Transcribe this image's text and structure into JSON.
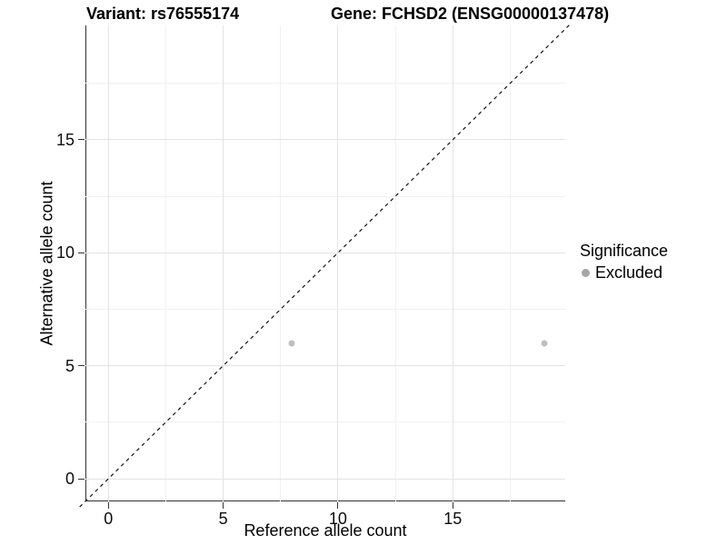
{
  "title": {
    "variant": "Variant: rs76555174",
    "gene": "Gene: FCHSD2 (ENSG00000137478)"
  },
  "chart_data": {
    "type": "scatter",
    "xlabel": "Reference allele count",
    "ylabel": "Alternative allele count",
    "xlim": [
      -1,
      19.9
    ],
    "ylim": [
      -1.005,
      20.06
    ],
    "x_ticks": [
      0,
      5,
      10,
      15
    ],
    "y_ticks": [
      0,
      5,
      10,
      15
    ],
    "x_minor_ticks": [
      2.5,
      7.5,
      12.5,
      17.5
    ],
    "y_minor_ticks": [
      2.5,
      7.5,
      12.5,
      17.5
    ],
    "grid": "major and minor light-gray gridlines on white panel, black axis lines left and bottom only",
    "series": [
      {
        "name": "Excluded",
        "marker_color": "#bfbfbf",
        "points": [
          [
            8,
            6
          ],
          [
            19,
            6
          ]
        ]
      }
    ],
    "identity_line": {
      "type": "abline",
      "slope": 1,
      "intercept": 0,
      "style": "dashed",
      "color": "#141414",
      "t_from": -1.25,
      "t_to": 20.1
    },
    "legend": {
      "title": "Significance",
      "position": "right",
      "items": [
        {
          "label": "Excluded",
          "color": "#a6a6a6"
        }
      ]
    }
  },
  "colors": {
    "background": "#ffffff",
    "grid_major": "#e3e3e3",
    "grid_minor": "#f1f1f1",
    "axis_line": "#333333",
    "text": "#000000"
  }
}
